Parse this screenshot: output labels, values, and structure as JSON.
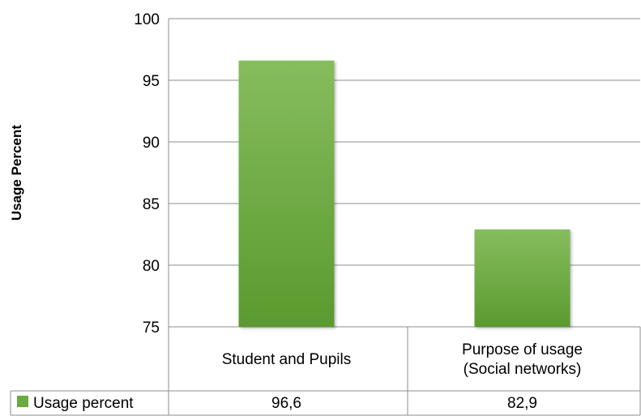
{
  "chart_data": {
    "type": "bar",
    "title": "",
    "ylabel": "Usage Percent",
    "xlabel": "",
    "categories": [
      [
        "Student and Pupils"
      ],
      [
        "Purpose of usage",
        "(Social networks)"
      ]
    ],
    "series": [
      {
        "name": "Usage percent",
        "values": [
          96.6,
          82.9
        ],
        "value_labels": [
          "96,6",
          "82,9"
        ],
        "color": "#6aaa3e"
      }
    ],
    "ylim": [
      75,
      100
    ],
    "yticks": [
      75,
      80,
      85,
      90,
      95,
      100
    ],
    "grid": true,
    "legend": "data-table-left",
    "colors": {
      "bar_top": "#86bd5d",
      "bar_bottom": "#5a9a2f",
      "grid": "#8c8c8c"
    }
  }
}
